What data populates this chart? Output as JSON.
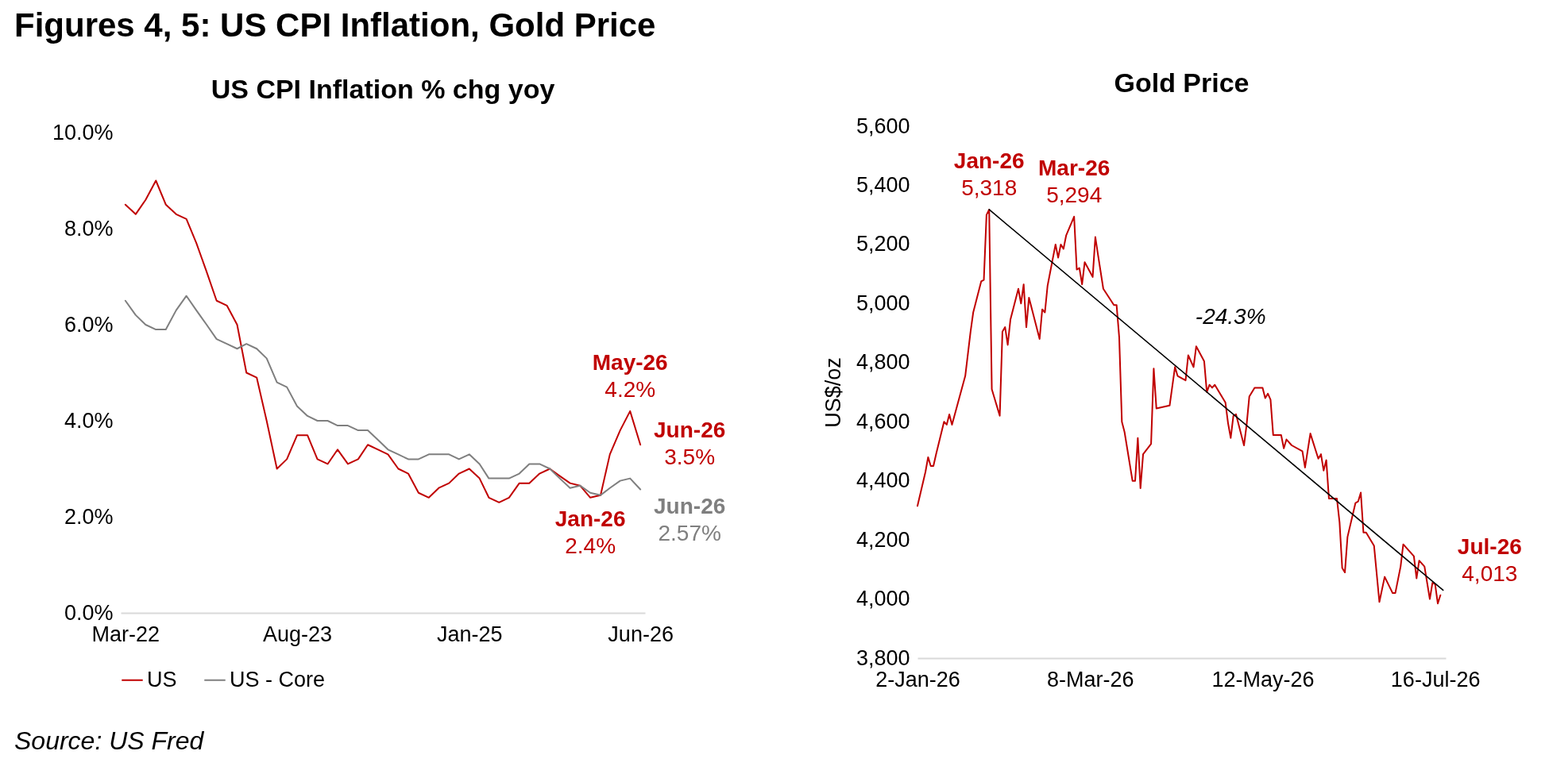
{
  "chart_data": [
    {
      "type": "line",
      "title": "Figures 4, 5: US CPI Inflation, Gold Price",
      "subtitle": "US CPI Inflation % chg yoy",
      "x": [
        "2022-03",
        "2022-04",
        "2022-05",
        "2022-06",
        "2022-07",
        "2022-08",
        "2022-09",
        "2022-10",
        "2022-11",
        "2022-12",
        "2023-01",
        "2023-02",
        "2023-03",
        "2023-04",
        "2023-05",
        "2023-06",
        "2023-07",
        "2023-08",
        "2023-09",
        "2023-10",
        "2023-11",
        "2023-12",
        "2024-01",
        "2024-02",
        "2024-03",
        "2024-04",
        "2024-05",
        "2024-06",
        "2024-07",
        "2024-08",
        "2024-09",
        "2024-10",
        "2024-11",
        "2024-12",
        "2025-01",
        "2025-02",
        "2025-03",
        "2025-04",
        "2025-05",
        "2025-06",
        "2025-07",
        "2025-08",
        "2025-09",
        "2025-10",
        "2025-11",
        "2025-12",
        "2026-01",
        "2026-02",
        "2026-03",
        "2026-04",
        "2026-05",
        "2026-06"
      ],
      "series": [
        {
          "name": "US",
          "color": "#c00000",
          "values": [
            8.5,
            8.3,
            8.6,
            9.0,
            8.5,
            8.3,
            8.2,
            7.7,
            7.1,
            6.5,
            6.4,
            6.0,
            5.0,
            4.9,
            4.0,
            3.0,
            3.2,
            3.7,
            3.7,
            3.2,
            3.1,
            3.4,
            3.1,
            3.2,
            3.5,
            3.4,
            3.3,
            3.0,
            2.9,
            2.5,
            2.4,
            2.6,
            2.7,
            2.9,
            3.0,
            2.8,
            2.4,
            2.3,
            2.4,
            2.7,
            2.7,
            2.9,
            3.0,
            2.85,
            2.7,
            2.65,
            2.4,
            2.45,
            3.3,
            3.8,
            4.2,
            3.5
          ]
        },
        {
          "name": "US - Core",
          "color": "#7f7f7f",
          "values": [
            6.5,
            6.2,
            6.0,
            5.9,
            5.9,
            6.3,
            6.6,
            6.3,
            6.0,
            5.7,
            5.6,
            5.5,
            5.6,
            5.5,
            5.3,
            4.8,
            4.7,
            4.3,
            4.1,
            4.0,
            4.0,
            3.9,
            3.9,
            3.8,
            3.8,
            3.6,
            3.4,
            3.3,
            3.2,
            3.2,
            3.3,
            3.3,
            3.3,
            3.2,
            3.3,
            3.1,
            2.8,
            2.8,
            2.8,
            2.9,
            3.1,
            3.1,
            3.0,
            2.8,
            2.6,
            2.65,
            2.5,
            2.45,
            2.6,
            2.75,
            2.8,
            2.57
          ]
        }
      ],
      "xlim": [
        "2022-02-15",
        "2026-06-15"
      ],
      "xticks": [
        {
          "value": "2022-03",
          "label": "Mar-22"
        },
        {
          "value": "2023-08",
          "label": "Aug-23"
        },
        {
          "value": "2025-01",
          "label": "Jan-25"
        },
        {
          "value": "2026-06",
          "label": "Jun-26"
        }
      ],
      "ylim": [
        0,
        10
      ],
      "yticks": [
        {
          "value": 0,
          "label": "0.0%"
        },
        {
          "value": 2,
          "label": "2.0%"
        },
        {
          "value": 4,
          "label": "4.0%"
        },
        {
          "value": 6,
          "label": "6.0%"
        },
        {
          "value": 8,
          "label": "8.0%"
        },
        {
          "value": 10,
          "label": "10.0%"
        }
      ],
      "grid": false,
      "legend": "bottom",
      "annotations": [
        {
          "text": "May-26\n4.2%",
          "x": "2026-05",
          "y": 4.2
        },
        {
          "text": "Jun-26\n3.5%",
          "x": "2026-06",
          "y": 3.5
        },
        {
          "text": "Jan-26\n2.4%",
          "x": "2026-01",
          "y": 2.4
        },
        {
          "text": "Jun-26\n2.57%",
          "x": "2026-06",
          "y": 2.57
        },
        "Source: US Fred"
      ]
    },
    {
      "type": "line",
      "title": "Gold Price",
      "ylabel": "US$/oz",
      "series": [
        {
          "color": "#c00000",
          "x": [
            "2026-01-02",
            "2026-01-05",
            "2026-01-06",
            "2026-01-07",
            "2026-01-08",
            "2026-01-09",
            "2026-01-12",
            "2026-01-13",
            "2026-01-14",
            "2026-01-15",
            "2026-01-20",
            "2026-01-22",
            "2026-01-23",
            "2026-01-26",
            "2026-01-27",
            "2026-01-28",
            "2026-01-29",
            "2026-01-30",
            "2026-02-02",
            "2026-02-03",
            "2026-02-04",
            "2026-02-05",
            "2026-02-06",
            "2026-02-09",
            "2026-02-10",
            "2026-02-11",
            "2026-02-12",
            "2026-02-13",
            "2026-02-17",
            "2026-02-18",
            "2026-02-19",
            "2026-02-20",
            "2026-02-23",
            "2026-02-24",
            "2026-02-25",
            "2026-02-26",
            "2026-02-27",
            "2026-03-02",
            "2026-03-03",
            "2026-03-04",
            "2026-03-05",
            "2026-03-06",
            "2026-03-09",
            "2026-03-10",
            "2026-03-11",
            "2026-03-13",
            "2026-03-17",
            "2026-03-18",
            "2026-03-19",
            "2026-03-20",
            "2026-03-21",
            "2026-03-24",
            "2026-03-25",
            "2026-03-26",
            "2026-03-27",
            "2026-03-28",
            "2026-03-31",
            "2026-04-01",
            "2026-04-02",
            "2026-04-07",
            "2026-04-09",
            "2026-04-10",
            "2026-04-13",
            "2026-04-14",
            "2026-04-16",
            "2026-04-17",
            "2026-04-20",
            "2026-04-21",
            "2026-04-22",
            "2026-04-23",
            "2026-04-24",
            "2026-04-28",
            "2026-04-29",
            "2026-04-30",
            "2026-05-01",
            "2026-05-02",
            "2026-05-05",
            "2026-05-06",
            "2026-05-07",
            "2026-05-09",
            "2026-05-12",
            "2026-05-13",
            "2026-05-14",
            "2026-05-15",
            "2026-05-16",
            "2026-05-19",
            "2026-05-20",
            "2026-05-21",
            "2026-05-23",
            "2026-05-27",
            "2026-05-28",
            "2026-05-30",
            "2026-06-02",
            "2026-06-03",
            "2026-06-04",
            "2026-06-05",
            "2026-06-06",
            "2026-06-09",
            "2026-06-10",
            "2026-06-11",
            "2026-06-12",
            "2026-06-13",
            "2026-06-16",
            "2026-06-17",
            "2026-06-18",
            "2026-06-19",
            "2026-06-20",
            "2026-06-23",
            "2026-06-25",
            "2026-06-27",
            "2026-06-30",
            "2026-07-01",
            "2026-07-03",
            "2026-07-04",
            "2026-07-08",
            "2026-07-09",
            "2026-07-10",
            "2026-07-12",
            "2026-07-14",
            "2026-07-15",
            "2026-07-16",
            "2026-07-17",
            "2026-07-18"
          ],
          "values": [
            4315,
            4430,
            4480,
            4450,
            4450,
            4490,
            4600,
            4590,
            4625,
            4590,
            4755,
            4905,
            4970,
            5075,
            5080,
            5300,
            5318,
            4710,
            4620,
            4905,
            4920,
            4860,
            4945,
            5050,
            5000,
            5065,
            4920,
            5020,
            4880,
            4980,
            4970,
            5060,
            5200,
            5155,
            5200,
            5185,
            5230,
            5294,
            5115,
            5120,
            5065,
            5140,
            5090,
            5225,
            5165,
            5050,
            4995,
            4995,
            4885,
            4600,
            4565,
            4400,
            4400,
            4545,
            4375,
            4490,
            4525,
            4780,
            4645,
            4655,
            4785,
            4755,
            4740,
            4825,
            4785,
            4855,
            4805,
            4700,
            4725,
            4715,
            4725,
            4665,
            4595,
            4545,
            4620,
            4625,
            4520,
            4590,
            4685,
            4715,
            4715,
            4680,
            4695,
            4675,
            4555,
            4555,
            4510,
            4540,
            4520,
            4500,
            4445,
            4560,
            4475,
            4490,
            4435,
            4470,
            4340,
            4340,
            4260,
            4105,
            4090,
            4210,
            4325,
            4330,
            4360,
            4225,
            4225,
            4180,
            3990,
            4075,
            4020,
            4020,
            4110,
            4185,
            4145,
            4070,
            4130,
            4110,
            4000,
            4055,
            4050,
            3985,
            4013
          ]
        },
        {
          "color": "#000000",
          "x": [
            "2026-01-29",
            "2026-07-19"
          ],
          "values": [
            5318,
            4030
          ]
        }
      ],
      "xlim": [
        "2026-01-02",
        "2026-07-20"
      ],
      "xticks": [
        {
          "value": "2026-01-02",
          "label": "2-Jan-26"
        },
        {
          "value": "2026-03-08",
          "label": "8-Mar-26"
        },
        {
          "value": "2026-05-12",
          "label": "12-May-26"
        },
        {
          "value": "2026-07-16",
          "label": "16-Jul-26"
        }
      ],
      "ylim": [
        3800,
        5600
      ],
      "yticks": [
        {
          "value": 3800,
          "label": "3,800"
        },
        {
          "value": 4000,
          "label": "4,000"
        },
        {
          "value": 4200,
          "label": "4,200"
        },
        {
          "value": 4400,
          "label": "4,400"
        },
        {
          "value": 4600,
          "label": "4,600"
        },
        {
          "value": 4800,
          "label": "4,800"
        },
        {
          "value": 5000,
          "label": "5,000"
        },
        {
          "value": 5200,
          "label": "5,200"
        },
        {
          "value": 5400,
          "label": "5,400"
        },
        {
          "value": 5600,
          "label": "5,600"
        }
      ],
      "grid": false,
      "annotations": [
        {
          "text": "Jan-26\n5,318",
          "x": "2026-01-29",
          "y": 5318
        },
        {
          "text": "Mar-26\n5,294",
          "x": "2026-03-02",
          "y": 5294
        },
        {
          "text": "Jul-26\n4,013",
          "x": "2026-07-18",
          "y": 4013
        },
        {
          "text": "-24.3%",
          "x": "2026-04-12",
          "y": 4768
        }
      ]
    }
  ]
}
